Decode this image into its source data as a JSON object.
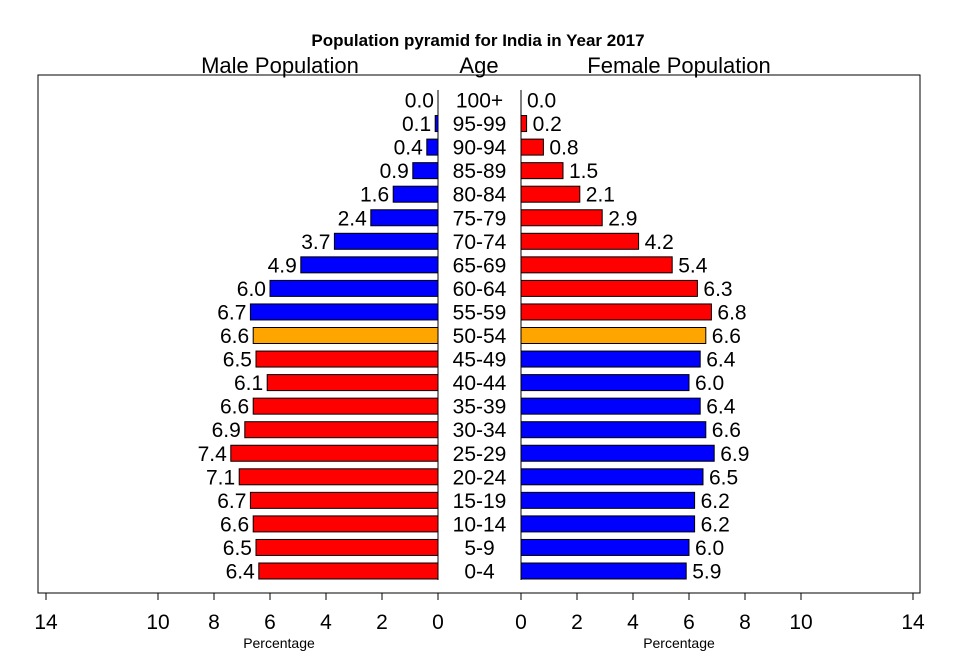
{
  "title": "Population pyramid for India in Year 2017",
  "headers": {
    "male": "Male Population",
    "age": "Age",
    "female": "Female Population"
  },
  "colors": {
    "red": "#ff0000",
    "blue": "#0000ff",
    "orange": "#ffa500"
  },
  "chart_data": {
    "type": "bar",
    "orientation": "horizontal-pyramid",
    "title": "Population pyramid for India in Year 2017",
    "categories": [
      "0-4",
      "5-9",
      "10-14",
      "15-19",
      "20-24",
      "25-29",
      "30-34",
      "35-39",
      "40-44",
      "45-49",
      "50-54",
      "55-59",
      "60-64",
      "65-69",
      "70-74",
      "75-79",
      "80-84",
      "85-89",
      "90-94",
      "95-99",
      "100+"
    ],
    "series": [
      {
        "name": "Male Population",
        "values": [
          6.4,
          6.5,
          6.6,
          6.7,
          7.1,
          7.4,
          6.9,
          6.6,
          6.1,
          6.5,
          6.6,
          6.7,
          6.0,
          4.9,
          3.7,
          2.4,
          1.6,
          0.9,
          0.4,
          0.1,
          0.0
        ],
        "labels": [
          "6.4",
          "6.5",
          "6.6",
          "6.7",
          "7.1",
          "7.4",
          "6.9",
          "6.6",
          "6.1",
          "6.5",
          "6.6",
          "6.7",
          "6.0",
          "4.9",
          "3.7",
          "2.4",
          "1.6",
          "0.9",
          "0.4",
          "0.1",
          "0.0"
        ],
        "colors": [
          "red",
          "red",
          "red",
          "red",
          "red",
          "red",
          "red",
          "red",
          "red",
          "red",
          "orange",
          "blue",
          "blue",
          "blue",
          "blue",
          "blue",
          "blue",
          "blue",
          "blue",
          "blue",
          "blue"
        ]
      },
      {
        "name": "Female Population",
        "values": [
          5.9,
          6.0,
          6.2,
          6.2,
          6.5,
          6.9,
          6.6,
          6.4,
          6.0,
          6.4,
          6.6,
          6.8,
          6.3,
          5.4,
          4.2,
          2.9,
          2.1,
          1.5,
          0.8,
          0.2,
          0.0
        ],
        "labels": [
          "5.9",
          "6.0",
          "6.2",
          "6.2",
          "6.5",
          "6.9",
          "6.6",
          "6.4",
          "6.0",
          "6.4",
          "6.6",
          "6.8",
          "6.3",
          "5.4",
          "4.2",
          "2.9",
          "2.1",
          "1.5",
          "0.8",
          "0.2",
          "0.0"
        ],
        "colors": [
          "blue",
          "blue",
          "blue",
          "blue",
          "blue",
          "blue",
          "blue",
          "blue",
          "blue",
          "blue",
          "orange",
          "red",
          "red",
          "red",
          "red",
          "red",
          "red",
          "red",
          "red",
          "red",
          "red"
        ]
      }
    ],
    "left_axis": {
      "ticks": [
        14,
        10,
        8,
        6,
        4,
        2,
        0
      ],
      "label": "Percentage"
    },
    "right_axis": {
      "ticks": [
        0,
        2,
        4,
        6,
        8,
        10,
        14
      ],
      "label": "Percentage"
    },
    "xlim": [
      0,
      14
    ],
    "grid": false
  }
}
